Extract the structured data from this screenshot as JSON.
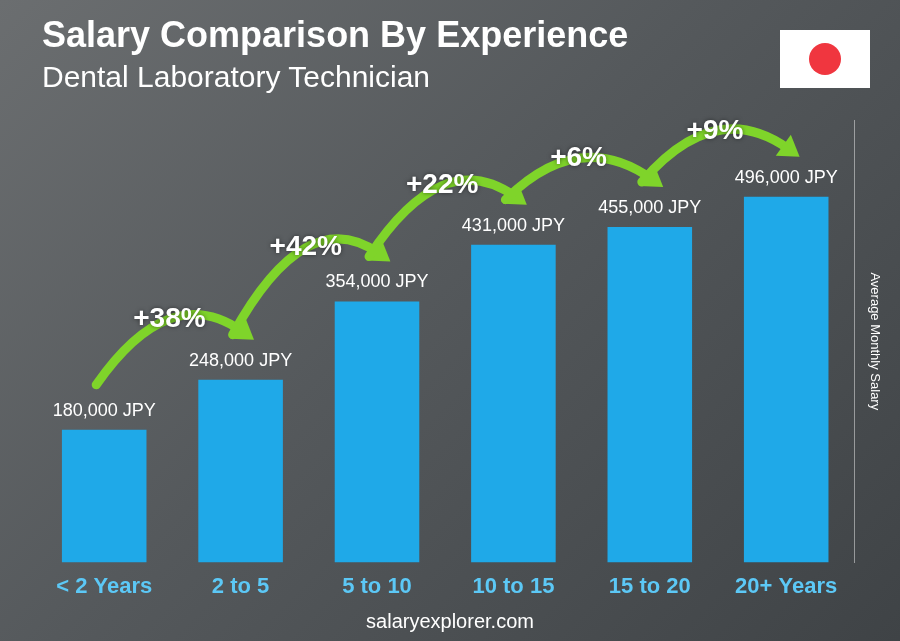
{
  "chart_data": {
    "type": "bar",
    "title": "Salary Comparison By Experience",
    "subtitle": "Dental Laboratory Technician",
    "y_label": "Average Monthly Salary",
    "footer": "salaryexplorer.com",
    "categories": [
      "< 2 Years",
      "2 to 5",
      "5 to 10",
      "10 to 15",
      "15 to 20",
      "20+ Years"
    ],
    "values": [
      180000,
      248000,
      354000,
      431000,
      455000,
      496000
    ],
    "value_labels": [
      "180,000 JPY",
      "248,000 JPY",
      "354,000 JPY",
      "431,000 JPY",
      "455,000 JPY",
      "496,000 JPY"
    ],
    "annotations": [
      "+38%",
      "+42%",
      "+22%",
      "+6%",
      "+9%"
    ],
    "color": "#1fa9e8",
    "ylim": [
      0,
      600000
    ],
    "grid": false,
    "data_labels": true,
    "tick_labels": "x"
  }
}
